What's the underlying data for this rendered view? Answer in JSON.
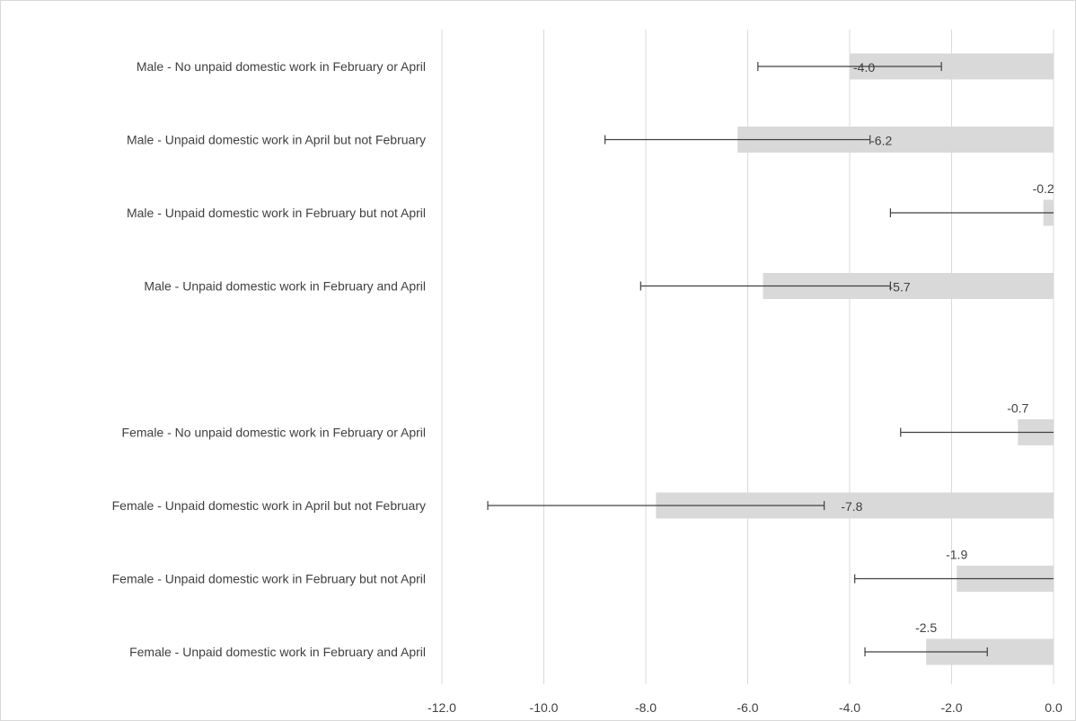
{
  "chart_data": {
    "type": "bar",
    "orientation": "horizontal",
    "categories": [
      "Male - No unpaid domestic work in February or April",
      "Male - Unpaid domestic work in April but not February",
      "Male - Unpaid domestic work in February but not April",
      "Male - Unpaid domestic work in February and April",
      "",
      "Female - No unpaid domestic work in February or April",
      "Female - Unpaid domestic work in April but not February",
      "Female - Unpaid domestic work in February but not April",
      "Female - Unpaid domestic work in February and April"
    ],
    "values": [
      -4.0,
      -6.2,
      -0.2,
      -5.7,
      null,
      -0.7,
      -7.8,
      -1.9,
      -2.5
    ],
    "value_labels": [
      "-4.0",
      "-6.2",
      "-0.2",
      "-5.7",
      "",
      "-0.7",
      "-7.8",
      "-1.9",
      "-2.5"
    ],
    "error_low": [
      -5.8,
      -8.8,
      -3.2,
      -8.1,
      null,
      -3.0,
      -11.1,
      -3.9,
      -3.7
    ],
    "error_high": [
      -2.2,
      -3.6,
      2.8,
      -3.2,
      null,
      1.7,
      -4.5,
      0.1,
      -1.3
    ],
    "xlim": [
      -12.0,
      0.0
    ],
    "x_ticks": [
      -12.0,
      -10.0,
      -8.0,
      -6.0,
      -4.0,
      -2.0,
      0.0
    ],
    "x_tick_labels": [
      "-12.0",
      "-10.0",
      "-8.0",
      "-6.0",
      "-4.0",
      "-2.0",
      "0.0"
    ],
    "title": "",
    "xlabel": "",
    "ylabel": "",
    "grid": "vertical",
    "legend": "none",
    "colors": {
      "bar": "#d9d9d9",
      "grid": "#d9d9d9",
      "error_bar": "#404040",
      "text": "#404040"
    }
  }
}
